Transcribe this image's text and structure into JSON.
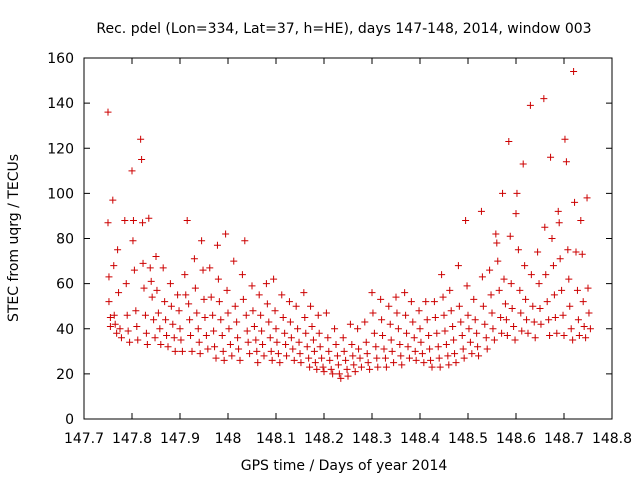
{
  "chart_data": {
    "type": "scatter",
    "title": "Rec. pdel (Lon=334, Lat=37, h=HE), days 147-148, 2014, window 003",
    "xlabel": "GPS time / Days of year 2014",
    "ylabel": "STEC from uqrg / TECUs",
    "xlim": [
      147.7,
      148.8
    ],
    "ylim": [
      0,
      160
    ],
    "xticks": [
      147.7,
      147.8,
      147.9,
      148.0,
      148.1,
      148.2,
      148.3,
      148.4,
      148.5,
      148.6,
      148.7,
      148.8
    ],
    "xtick_labels": [
      "147.7",
      "147.8",
      "147.9",
      "148",
      "148.1",
      "148.2",
      "148.3",
      "148.4",
      "148.5",
      "148.6",
      "148.7",
      "148.8"
    ],
    "yticks": [
      0,
      20,
      40,
      60,
      80,
      100,
      120,
      140,
      160
    ],
    "ytick_labels": [
      "0",
      "20",
      "40",
      "60",
      "80",
      "100",
      "120",
      "140",
      "160"
    ],
    "grid": false,
    "legend": "none",
    "marker": "+",
    "color": "#cc0000",
    "points": [
      [
        147.75,
        136
      ],
      [
        147.75,
        87
      ],
      [
        147.752,
        63
      ],
      [
        147.752,
        52
      ],
      [
        147.755,
        45
      ],
      [
        147.755,
        41
      ],
      [
        147.76,
        97
      ],
      [
        147.762,
        68
      ],
      [
        147.763,
        46
      ],
      [
        147.765,
        42
      ],
      [
        147.768,
        38
      ],
      [
        147.77,
        75
      ],
      [
        147.772,
        56
      ],
      [
        147.775,
        40
      ],
      [
        147.778,
        36
      ],
      [
        147.785,
        88
      ],
      [
        147.788,
        60
      ],
      [
        147.79,
        46
      ],
      [
        147.792,
        39
      ],
      [
        147.795,
        34
      ],
      [
        147.8,
        110
      ],
      [
        147.802,
        79
      ],
      [
        147.803,
        88
      ],
      [
        147.805,
        66
      ],
      [
        147.808,
        48
      ],
      [
        147.81,
        41
      ],
      [
        147.812,
        35
      ],
      [
        147.818,
        124
      ],
      [
        147.82,
        115
      ],
      [
        147.822,
        87
      ],
      [
        147.823,
        69
      ],
      [
        147.825,
        58
      ],
      [
        147.828,
        46
      ],
      [
        147.83,
        38
      ],
      [
        147.832,
        33
      ],
      [
        147.835,
        89
      ],
      [
        147.838,
        67
      ],
      [
        147.84,
        61
      ],
      [
        147.842,
        54
      ],
      [
        147.845,
        44
      ],
      [
        147.848,
        36
      ],
      [
        147.85,
        72
      ],
      [
        147.852,
        57
      ],
      [
        147.855,
        47
      ],
      [
        147.858,
        40
      ],
      [
        147.86,
        33
      ],
      [
        147.865,
        67
      ],
      [
        147.868,
        52
      ],
      [
        147.87,
        44
      ],
      [
        147.872,
        37
      ],
      [
        147.875,
        32
      ],
      [
        147.88,
        60
      ],
      [
        147.882,
        50
      ],
      [
        147.885,
        42
      ],
      [
        147.888,
        36
      ],
      [
        147.89,
        30
      ],
      [
        147.895,
        55
      ],
      [
        147.898,
        48
      ],
      [
        147.9,
        40
      ],
      [
        147.902,
        35
      ],
      [
        147.905,
        30
      ],
      [
        147.91,
        64
      ],
      [
        147.912,
        55
      ],
      [
        147.915,
        88
      ],
      [
        147.918,
        51
      ],
      [
        147.92,
        44
      ],
      [
        147.922,
        37
      ],
      [
        147.925,
        30
      ],
      [
        147.93,
        71
      ],
      [
        147.932,
        58
      ],
      [
        147.935,
        47
      ],
      [
        147.938,
        40
      ],
      [
        147.94,
        34
      ],
      [
        147.942,
        29
      ],
      [
        147.945,
        79
      ],
      [
        147.948,
        66
      ],
      [
        147.95,
        53
      ],
      [
        147.952,
        45
      ],
      [
        147.955,
        37
      ],
      [
        147.958,
        31
      ],
      [
        147.962,
        67
      ],
      [
        147.965,
        54
      ],
      [
        147.968,
        46
      ],
      [
        147.97,
        39
      ],
      [
        147.972,
        32
      ],
      [
        147.975,
        27
      ],
      [
        147.978,
        77
      ],
      [
        147.98,
        62
      ],
      [
        147.982,
        52
      ],
      [
        147.985,
        44
      ],
      [
        147.988,
        37
      ],
      [
        147.99,
        30
      ],
      [
        147.992,
        26
      ],
      [
        147.995,
        82
      ],
      [
        147.998,
        57
      ],
      [
        148.0,
        47
      ],
      [
        148.002,
        40
      ],
      [
        148.005,
        33
      ],
      [
        148.008,
        28
      ],
      [
        148.012,
        70
      ],
      [
        148.015,
        50
      ],
      [
        148.018,
        43
      ],
      [
        148.02,
        36
      ],
      [
        148.022,
        31
      ],
      [
        148.025,
        26
      ],
      [
        148.03,
        64
      ],
      [
        148.032,
        53
      ],
      [
        148.035,
        79
      ],
      [
        148.038,
        46
      ],
      [
        148.04,
        39
      ],
      [
        148.042,
        34
      ],
      [
        148.045,
        29
      ],
      [
        148.05,
        59
      ],
      [
        148.052,
        48
      ],
      [
        148.055,
        41
      ],
      [
        148.058,
        35
      ],
      [
        148.06,
        30
      ],
      [
        148.062,
        25
      ],
      [
        148.065,
        55
      ],
      [
        148.068,
        46
      ],
      [
        148.07,
        39
      ],
      [
        148.072,
        33
      ],
      [
        148.075,
        28
      ],
      [
        148.08,
        60
      ],
      [
        148.082,
        51
      ],
      [
        148.085,
        43
      ],
      [
        148.088,
        36
      ],
      [
        148.09,
        30
      ],
      [
        148.092,
        26
      ],
      [
        148.095,
        62
      ],
      [
        148.098,
        48
      ],
      [
        148.1,
        40
      ],
      [
        148.102,
        34
      ],
      [
        148.105,
        29
      ],
      [
        148.108,
        25
      ],
      [
        148.112,
        55
      ],
      [
        148.115,
        45
      ],
      [
        148.118,
        38
      ],
      [
        148.12,
        33
      ],
      [
        148.122,
        28
      ],
      [
        148.128,
        52
      ],
      [
        148.13,
        43
      ],
      [
        148.132,
        36
      ],
      [
        148.135,
        31
      ],
      [
        148.138,
        26
      ],
      [
        148.142,
        50
      ],
      [
        148.145,
        40
      ],
      [
        148.148,
        34
      ],
      [
        148.15,
        29
      ],
      [
        148.152,
        25
      ],
      [
        148.158,
        56
      ],
      [
        148.16,
        45
      ],
      [
        148.162,
        38
      ],
      [
        148.165,
        32
      ],
      [
        148.168,
        27
      ],
      [
        148.17,
        23
      ],
      [
        148.172,
        50
      ],
      [
        148.175,
        41
      ],
      [
        148.178,
        35
      ],
      [
        148.18,
        30
      ],
      [
        148.182,
        25
      ],
      [
        148.185,
        22
      ],
      [
        148.188,
        46
      ],
      [
        148.19,
        38
      ],
      [
        148.192,
        32
      ],
      [
        148.195,
        27
      ],
      [
        148.198,
        23
      ],
      [
        148.2,
        21
      ],
      [
        148.205,
        47
      ],
      [
        148.208,
        36
      ],
      [
        148.21,
        30
      ],
      [
        148.212,
        26
      ],
      [
        148.215,
        22
      ],
      [
        148.218,
        20
      ],
      [
        148.222,
        40
      ],
      [
        148.225,
        33
      ],
      [
        148.228,
        28
      ],
      [
        148.23,
        24
      ],
      [
        148.232,
        20
      ],
      [
        148.235,
        18
      ],
      [
        148.24,
        36
      ],
      [
        148.242,
        30
      ],
      [
        148.245,
        26
      ],
      [
        148.248,
        22
      ],
      [
        148.25,
        19
      ],
      [
        148.255,
        42
      ],
      [
        148.258,
        33
      ],
      [
        148.26,
        28
      ],
      [
        148.262,
        24
      ],
      [
        148.265,
        21
      ],
      [
        148.27,
        40
      ],
      [
        148.272,
        31
      ],
      [
        148.275,
        27
      ],
      [
        148.278,
        23
      ],
      [
        148.285,
        43
      ],
      [
        148.288,
        34
      ],
      [
        148.29,
        29
      ],
      [
        148.292,
        25
      ],
      [
        148.295,
        22
      ],
      [
        148.3,
        56
      ],
      [
        148.302,
        47
      ],
      [
        148.305,
        38
      ],
      [
        148.308,
        32
      ],
      [
        148.31,
        27
      ],
      [
        148.312,
        23
      ],
      [
        148.318,
        53
      ],
      [
        148.32,
        44
      ],
      [
        148.322,
        37
      ],
      [
        148.325,
        31
      ],
      [
        148.328,
        27
      ],
      [
        148.33,
        23
      ],
      [
        148.335,
        50
      ],
      [
        148.338,
        42
      ],
      [
        148.34,
        35
      ],
      [
        148.342,
        30
      ],
      [
        148.345,
        25
      ],
      [
        148.35,
        54
      ],
      [
        148.352,
        47
      ],
      [
        148.355,
        40
      ],
      [
        148.358,
        33
      ],
      [
        148.36,
        28
      ],
      [
        148.362,
        24
      ],
      [
        148.368,
        56
      ],
      [
        148.37,
        46
      ],
      [
        148.372,
        38
      ],
      [
        148.375,
        32
      ],
      [
        148.378,
        27
      ],
      [
        148.382,
        52
      ],
      [
        148.385,
        43
      ],
      [
        148.388,
        36
      ],
      [
        148.39,
        30
      ],
      [
        148.392,
        26
      ],
      [
        148.398,
        48
      ],
      [
        148.4,
        40
      ],
      [
        148.402,
        34
      ],
      [
        148.405,
        29
      ],
      [
        148.408,
        25
      ],
      [
        148.412,
        52
      ],
      [
        148.415,
        44
      ],
      [
        148.418,
        37
      ],
      [
        148.42,
        31
      ],
      [
        148.422,
        26
      ],
      [
        148.425,
        23
      ],
      [
        148.43,
        52
      ],
      [
        148.432,
        45
      ],
      [
        148.435,
        38
      ],
      [
        148.438,
        32
      ],
      [
        148.44,
        27
      ],
      [
        148.442,
        23
      ],
      [
        148.445,
        64
      ],
      [
        148.448,
        54
      ],
      [
        148.45,
        46
      ],
      [
        148.452,
        39
      ],
      [
        148.455,
        33
      ],
      [
        148.458,
        28
      ],
      [
        148.46,
        24
      ],
      [
        148.462,
        57
      ],
      [
        148.465,
        48
      ],
      [
        148.468,
        41
      ],
      [
        148.47,
        35
      ],
      [
        148.472,
        29
      ],
      [
        148.475,
        25
      ],
      [
        148.48,
        68
      ],
      [
        148.482,
        50
      ],
      [
        148.485,
        43
      ],
      [
        148.488,
        37
      ],
      [
        148.49,
        31
      ],
      [
        148.492,
        27
      ],
      [
        148.495,
        88
      ],
      [
        148.498,
        59
      ],
      [
        148.5,
        46
      ],
      [
        148.502,
        40
      ],
      [
        148.505,
        34
      ],
      [
        148.508,
        29
      ],
      [
        148.512,
        53
      ],
      [
        148.515,
        44
      ],
      [
        148.518,
        38
      ],
      [
        148.52,
        32
      ],
      [
        148.522,
        28
      ],
      [
        148.528,
        92
      ],
      [
        148.53,
        63
      ],
      [
        148.532,
        50
      ],
      [
        148.535,
        42
      ],
      [
        148.538,
        36
      ],
      [
        148.54,
        31
      ],
      [
        148.545,
        66
      ],
      [
        148.548,
        55
      ],
      [
        148.55,
        47
      ],
      [
        148.552,
        40
      ],
      [
        148.555,
        35
      ],
      [
        148.558,
        82
      ],
      [
        148.56,
        78
      ],
      [
        148.562,
        70
      ],
      [
        148.565,
        57
      ],
      [
        148.568,
        45
      ],
      [
        148.57,
        38
      ],
      [
        148.572,
        100
      ],
      [
        148.575,
        62
      ],
      [
        148.578,
        51
      ],
      [
        148.58,
        44
      ],
      [
        148.582,
        37
      ],
      [
        148.585,
        123
      ],
      [
        148.588,
        81
      ],
      [
        148.59,
        60
      ],
      [
        148.592,
        49
      ],
      [
        148.595,
        41
      ],
      [
        148.598,
        35
      ],
      [
        148.6,
        91
      ],
      [
        148.602,
        100
      ],
      [
        148.605,
        75
      ],
      [
        148.608,
        57
      ],
      [
        148.61,
        47
      ],
      [
        148.612,
        39
      ],
      [
        148.615,
        113
      ],
      [
        148.618,
        68
      ],
      [
        148.62,
        53
      ],
      [
        148.622,
        44
      ],
      [
        148.625,
        38
      ],
      [
        148.63,
        139
      ],
      [
        148.632,
        64
      ],
      [
        148.635,
        50
      ],
      [
        148.638,
        43
      ],
      [
        148.64,
        36
      ],
      [
        148.645,
        74
      ],
      [
        148.648,
        60
      ],
      [
        148.65,
        49
      ],
      [
        148.652,
        42
      ],
      [
        148.658,
        142
      ],
      [
        148.66,
        85
      ],
      [
        148.662,
        64
      ],
      [
        148.665,
        52
      ],
      [
        148.668,
        44
      ],
      [
        148.67,
        37
      ],
      [
        148.672,
        116
      ],
      [
        148.675,
        80
      ],
      [
        148.678,
        68
      ],
      [
        148.68,
        55
      ],
      [
        148.682,
        45
      ],
      [
        148.685,
        38
      ],
      [
        148.688,
        92
      ],
      [
        148.69,
        87
      ],
      [
        148.692,
        71
      ],
      [
        148.695,
        57
      ],
      [
        148.698,
        46
      ],
      [
        148.7,
        37
      ],
      [
        148.702,
        124
      ],
      [
        148.705,
        114
      ],
      [
        148.708,
        75
      ],
      [
        148.71,
        62
      ],
      [
        148.712,
        50
      ],
      [
        148.715,
        40
      ],
      [
        148.718,
        35
      ],
      [
        148.72,
        154
      ],
      [
        148.722,
        96
      ],
      [
        148.725,
        74
      ],
      [
        148.728,
        57
      ],
      [
        148.73,
        44
      ],
      [
        148.732,
        37
      ],
      [
        148.735,
        88
      ],
      [
        148.738,
        73
      ],
      [
        148.74,
        52
      ],
      [
        148.742,
        41
      ],
      [
        148.745,
        36
      ],
      [
        148.748,
        98
      ],
      [
        148.75,
        58
      ],
      [
        148.752,
        47
      ],
      [
        148.755,
        40
      ]
    ]
  }
}
